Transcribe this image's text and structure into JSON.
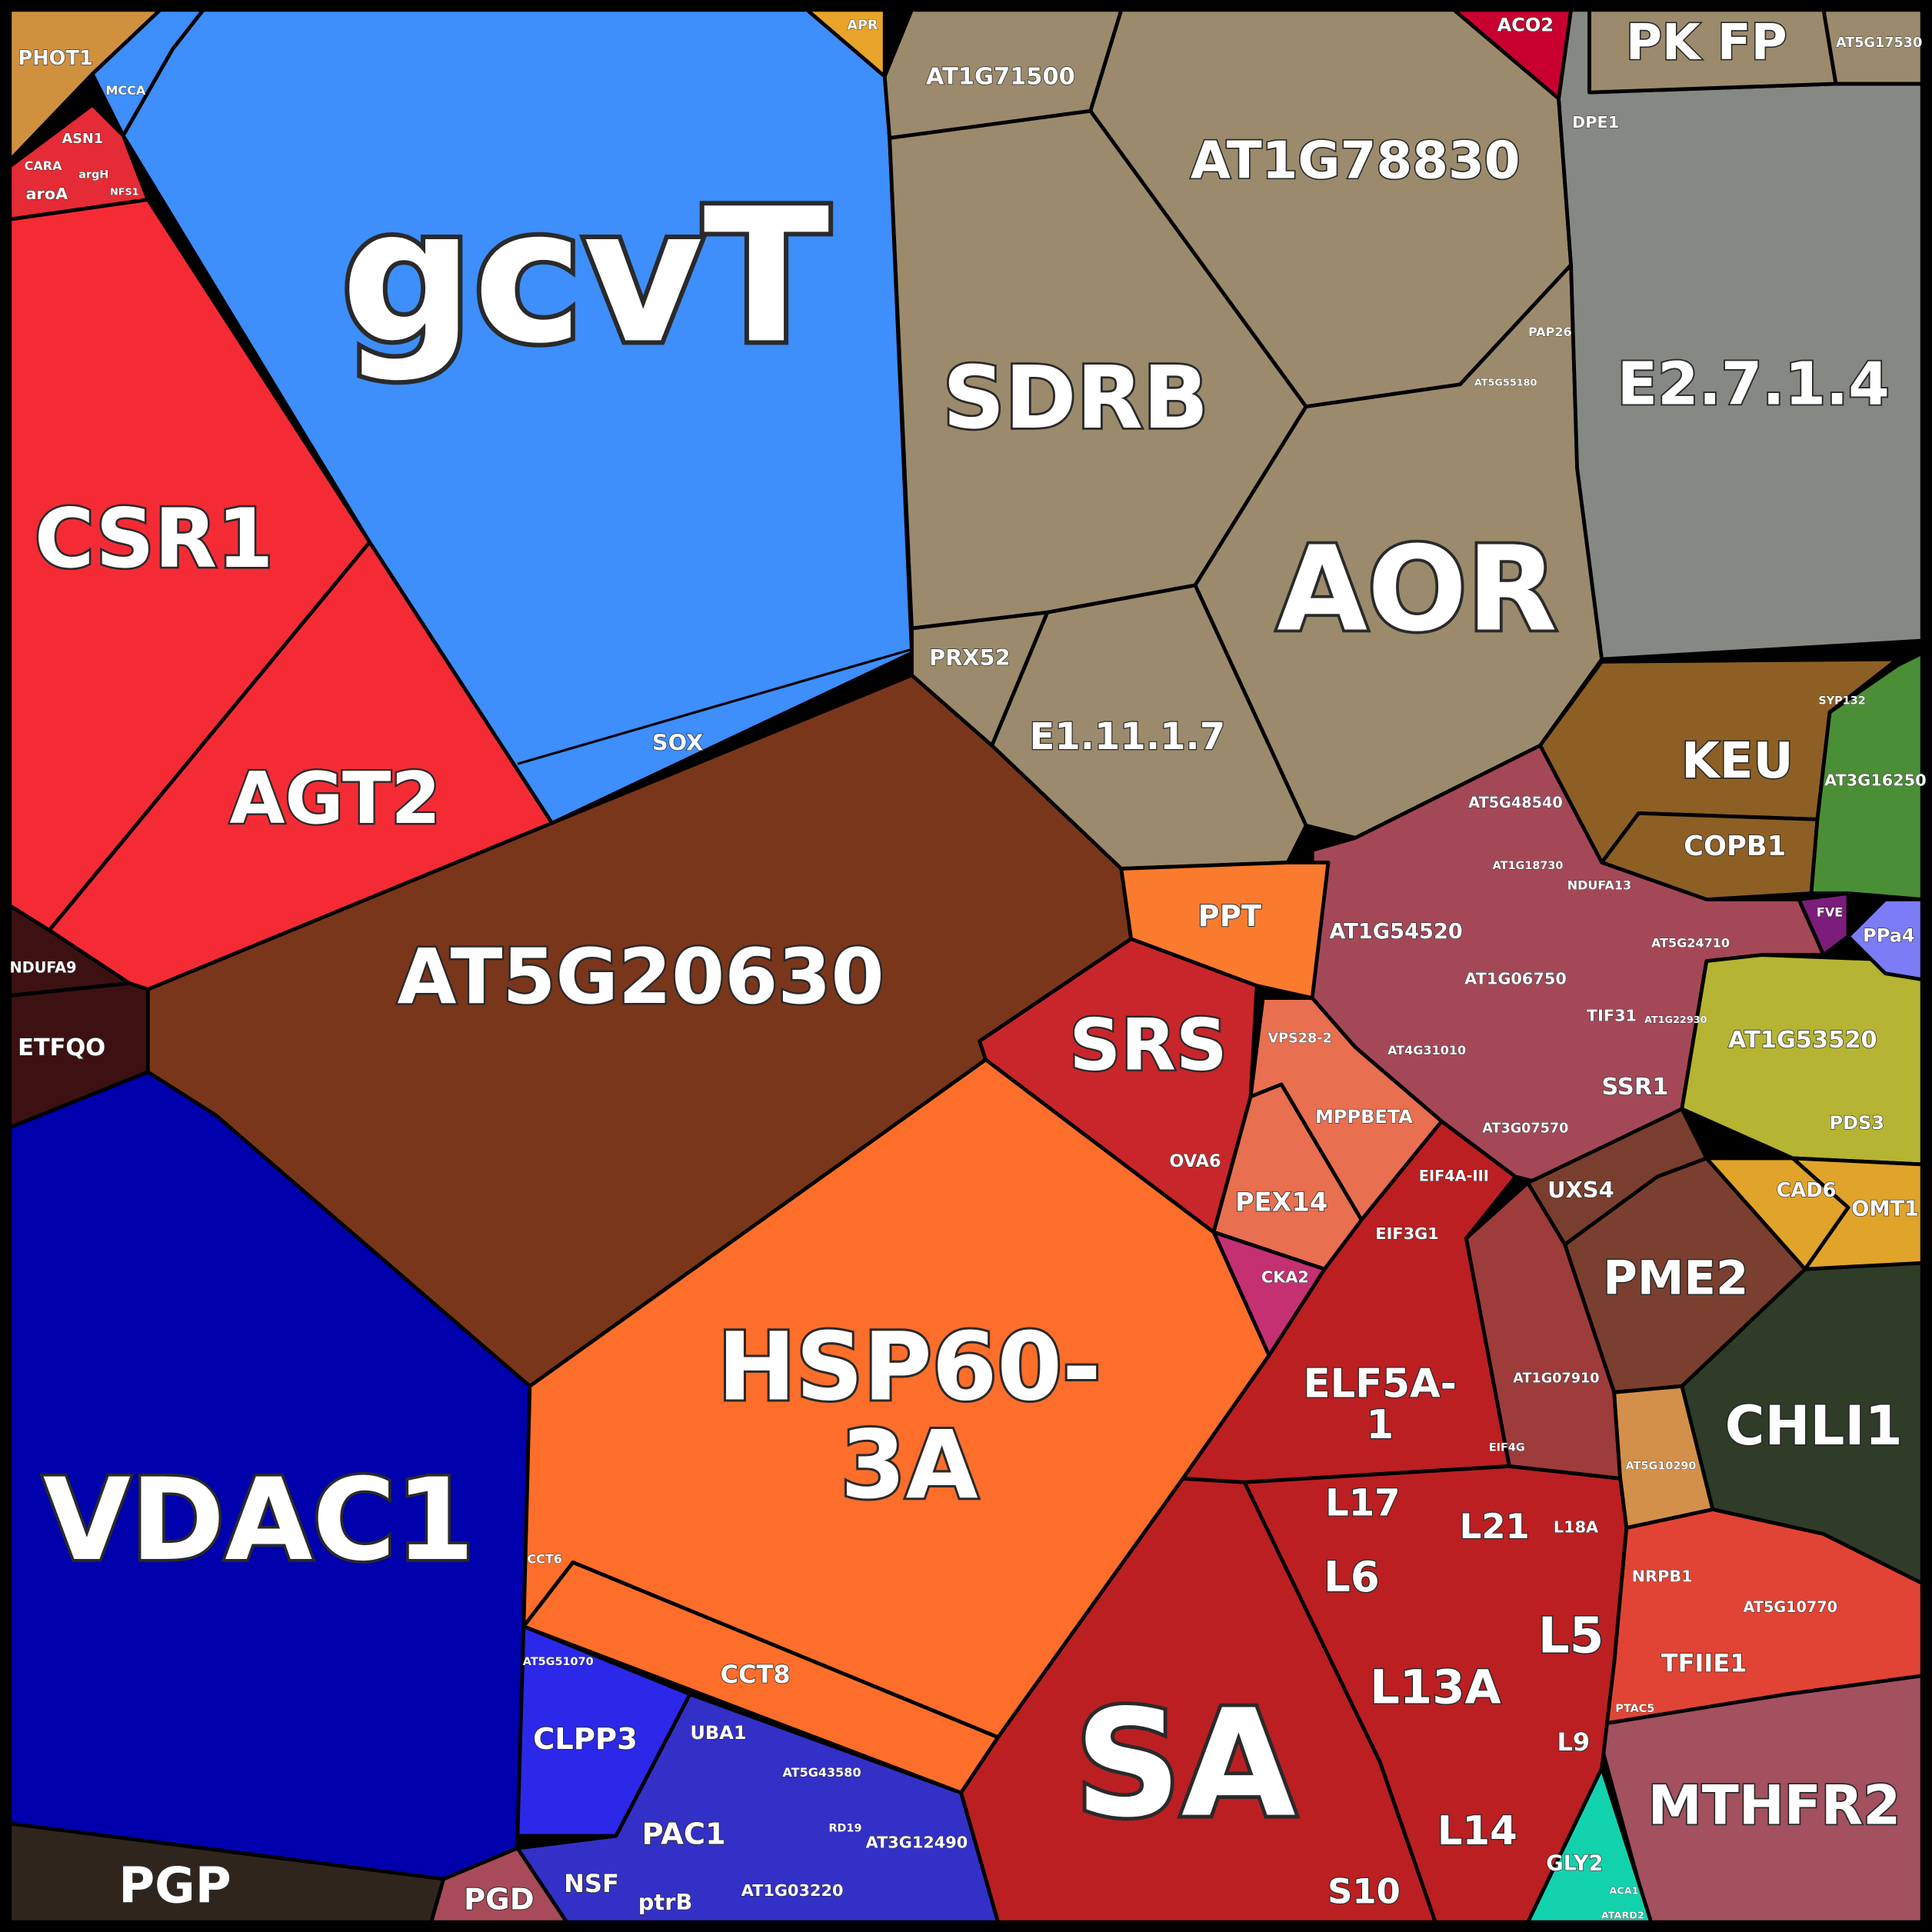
{
  "cells": [
    {
      "label": "gcvT",
      "color": "#3e8efb"
    },
    {
      "label": "CSR1",
      "color": "#f42b35"
    },
    {
      "label": "AGT2",
      "color": "#f42b35"
    },
    {
      "label": "AT5G20630",
      "color": "#7a361b"
    },
    {
      "label": "VDAC1",
      "color": "#0000ad"
    },
    {
      "label": [
        "HSP60-",
        "3A"
      ],
      "color": "#fd6e2b"
    },
    {
      "label": "CCT8",
      "color": "#fd6e2b"
    },
    {
      "label": "SA",
      "color": "#bb1f22"
    },
    {
      "label": [
        "ELF5A-",
        "1"
      ],
      "color": "#bb1f22"
    },
    {
      "label": "SRS",
      "color": "#c8262b"
    },
    {
      "label": "SDRB",
      "color": "#9b8b6c"
    },
    {
      "label": "AT1G78830",
      "color": "#9b8b6c"
    },
    {
      "label": "AOR",
      "color": "#9b8b6c"
    },
    {
      "label": "E1.11.1.7",
      "color": "#9b8b6c"
    },
    {
      "label": "PRX52",
      "color": "#9b8b6c"
    },
    {
      "label": "AT1G71500",
      "color": "#9b8b6c"
    },
    {
      "label": "E2.7.1.4",
      "color": "#868883"
    },
    {
      "label": "PK FP",
      "color": "#9b8b6c"
    },
    {
      "label": "AT5G17530",
      "color": "#9b8b6c"
    },
    {
      "label": "KEU",
      "color": "#8d5f25"
    },
    {
      "label": "COPB1",
      "color": "#8d5f25"
    },
    {
      "label": "AT3G16250",
      "color": "#4a8f35"
    },
    {
      "label": "AT1G54520",
      "color": "#a44858"
    },
    {
      "label": "AT1G53520",
      "color": "#b5b433"
    },
    {
      "label": "CHLI1",
      "color": "#2f3c27"
    },
    {
      "label": "PME2",
      "color": "#7b3f2f"
    },
    {
      "label": "MTHFR2",
      "color": "#a3505f"
    },
    {
      "label": "GLY2",
      "color": "#12d2ae"
    },
    {
      "label": "TFIIE1",
      "color": "#e14434"
    },
    {
      "label": "PGP",
      "color": "#2f251d"
    },
    {
      "label": "PGD",
      "color": "#a84a59"
    },
    {
      "label": "CLPP3",
      "color": "#2b28ea"
    },
    {
      "label": "PAC1",
      "color": "#3330c8"
    },
    {
      "label": "PPT",
      "color": "#fb7b2e"
    },
    {
      "label": "PEX14",
      "color": "#e86f50"
    },
    {
      "label": "MPPBETA",
      "color": "#e86f50"
    },
    {
      "label": "CKA2",
      "color": "#c53072"
    },
    {
      "label": "AT1G07910",
      "color": "#9e3b3b"
    },
    {
      "label": "UXS4",
      "color": "#7a3e2e"
    },
    {
      "label": "CAD6",
      "color": "#e0a42a"
    },
    {
      "label": "OMT1",
      "color": "#e0a42a"
    },
    {
      "label": "PPa4",
      "color": "#7b7cf6"
    },
    {
      "label": "FVE",
      "color": "#7a1d7b"
    },
    {
      "label": "AT5G10290",
      "color": "#d3904a"
    },
    {
      "label": "ETFQO",
      "color": "#3d1112"
    },
    {
      "label": "NDUFA9",
      "color": "#3d1112"
    },
    {
      "label": "PHOT1",
      "color": "#d0913f"
    },
    {
      "label": "ACO2",
      "color": "#c8002f"
    },
    {
      "label": "APR",
      "color": "#e8a42a"
    },
    {
      "label": "ASN1",
      "color": "#e52b35"
    },
    {
      "label": "MCCA",
      "color": "#3e8efb"
    },
    {
      "label": "L13A",
      "color": "#bb1f22"
    }
  ],
  "minor_labels": [
    "SOX",
    "CCT6",
    "AT5G48540",
    "AT1G06750",
    "TIF31",
    "SSR1",
    "AT4G31010",
    "AT3G07570",
    "NDUFA13",
    "AT5G24710",
    "VPS28-2",
    "OVA6",
    "EIF4A-III",
    "EIF3G1",
    "EIF4G",
    "L17",
    "L21",
    "L6",
    "L5",
    "L9",
    "L14",
    "S10",
    "L18A",
    "NRPB1",
    "AT5G10770",
    "PTAC5",
    "ATARD2",
    "ACA1",
    "PDS3",
    "DPE1",
    "PAP26",
    "AT5G55180",
    "CARA",
    "aroA",
    "argH",
    "NFS1",
    "UBA1",
    "NSF",
    "ptrB",
    "AT1G03220",
    "AT3G12490",
    "AT5G43580",
    "RD19",
    "AT5G51070",
    "SYP132",
    "AT1G18730",
    "AT1G22930"
  ]
}
